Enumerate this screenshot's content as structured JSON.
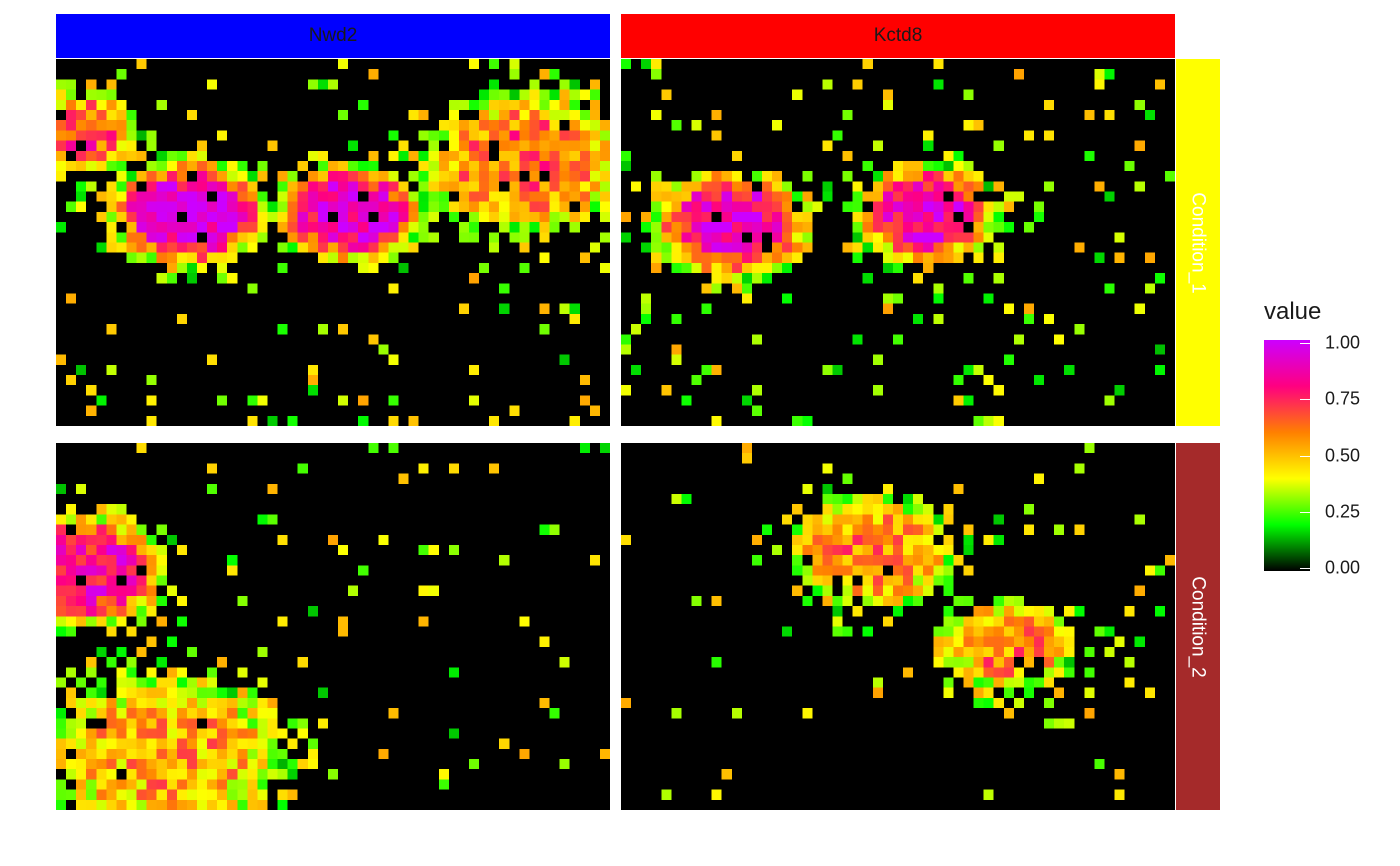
{
  "chart_data": {
    "type": "heatmap",
    "columns": [
      {
        "label": "Nwd2",
        "color": "#0000FF"
      },
      {
        "label": "Kctd8",
        "color": "#FF0000"
      }
    ],
    "rows": [
      {
        "label": "Condition_1",
        "color": "#FFFF00"
      },
      {
        "label": "Condition_2",
        "color": "#A52A2A"
      }
    ],
    "legend": {
      "title": "value",
      "range": [
        0,
        1
      ],
      "ticks": [
        "1.00",
        "0.75",
        "0.50",
        "0.25",
        "0.00"
      ],
      "gradient": [
        "#000000",
        "#00FF00",
        "#FFFF00",
        "#FF8000",
        "#FF0080",
        "#CC00FF"
      ],
      "placement": "right"
    },
    "grid": false,
    "panels": [
      {
        "column": "Nwd2",
        "row": "Condition_1",
        "hotspots": [
          {
            "cx": 0.24,
            "cy": 0.42,
            "r": 0.13,
            "peak": 0.97
          },
          {
            "cx": 0.53,
            "cy": 0.42,
            "r": 0.12,
            "peak": 0.95
          },
          {
            "cx": 0.85,
            "cy": 0.28,
            "r": 0.18,
            "peak": 0.65
          },
          {
            "cx": 0.05,
            "cy": 0.2,
            "r": 0.1,
            "peak": 0.7
          }
        ],
        "background": 0.08
      },
      {
        "column": "Kctd8",
        "row": "Condition_1",
        "hotspots": [
          {
            "cx": 0.2,
            "cy": 0.45,
            "r": 0.13,
            "peak": 0.93
          },
          {
            "cx": 0.55,
            "cy": 0.42,
            "r": 0.12,
            "peak": 0.9
          }
        ],
        "background": 0.1
      },
      {
        "column": "Nwd2",
        "row": "Condition_2",
        "hotspots": [
          {
            "cx": 0.05,
            "cy": 0.35,
            "r": 0.14,
            "peak": 0.85
          },
          {
            "cx": 0.2,
            "cy": 0.85,
            "r": 0.22,
            "peak": 0.55
          }
        ],
        "background": 0.04
      },
      {
        "column": "Kctd8",
        "row": "Condition_2",
        "hotspots": [
          {
            "cx": 0.45,
            "cy": 0.3,
            "r": 0.15,
            "peak": 0.6
          },
          {
            "cx": 0.7,
            "cy": 0.55,
            "r": 0.12,
            "peak": 0.6
          }
        ],
        "background": 0.04
      }
    ]
  }
}
